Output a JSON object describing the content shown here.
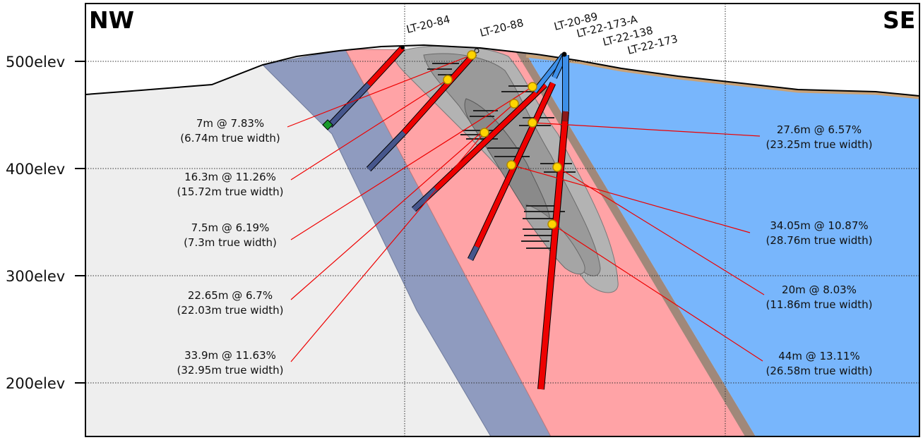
{
  "directions": {
    "left": "NW",
    "right": "SE"
  },
  "elevations": [
    {
      "label": "500elev",
      "value": 500
    },
    {
      "label": "400elev",
      "value": 400
    },
    {
      "label": "300elev",
      "value": 300
    },
    {
      "label": "200elev",
      "value": 200
    }
  ],
  "drillholes": [
    {
      "id": "LT-20-84"
    },
    {
      "id": "LT-20-88"
    },
    {
      "id": "LT-20-89"
    },
    {
      "id": "LT-22-173-A"
    },
    {
      "id": "LT-22-138"
    },
    {
      "id": "LT-22-173"
    }
  ],
  "callouts": {
    "left": [
      {
        "grade": "7m @ 7.83%",
        "width": "(6.74m true width)"
      },
      {
        "grade": "16.3m @ 11.26%",
        "width": "(15.72m true width)"
      },
      {
        "grade": "7.5m @ 6.19%",
        "width": "(7.3m true width)"
      },
      {
        "grade": "22.65m @ 6.7%",
        "width": "(22.03m true width)"
      },
      {
        "grade": "33.9m @ 11.63%",
        "width": "(32.95m true width)"
      }
    ],
    "right": [
      {
        "grade": "27.6m @ 6.57%",
        "width": "(23.25m true width)"
      },
      {
        "grade": "34.05m @ 10.87%",
        "width": "(28.76m true width)"
      },
      {
        "grade": "20m @ 8.03%",
        "width": "(11.86m true width)"
      },
      {
        "grade": "44m @ 13.11%",
        "width": "(26.58m true width)"
      }
    ]
  },
  "colors": {
    "host_rock": "#eeeeee",
    "blue_unit": "#8f9bbf",
    "pink_zone": "#ffa3a6",
    "blue_east": "#78b6fc",
    "mineralized_core": "#b3b3b3",
    "drill_hit": "#ee0000",
    "drill_barren": "#46568c",
    "intercept_marker": "#ffd400"
  }
}
